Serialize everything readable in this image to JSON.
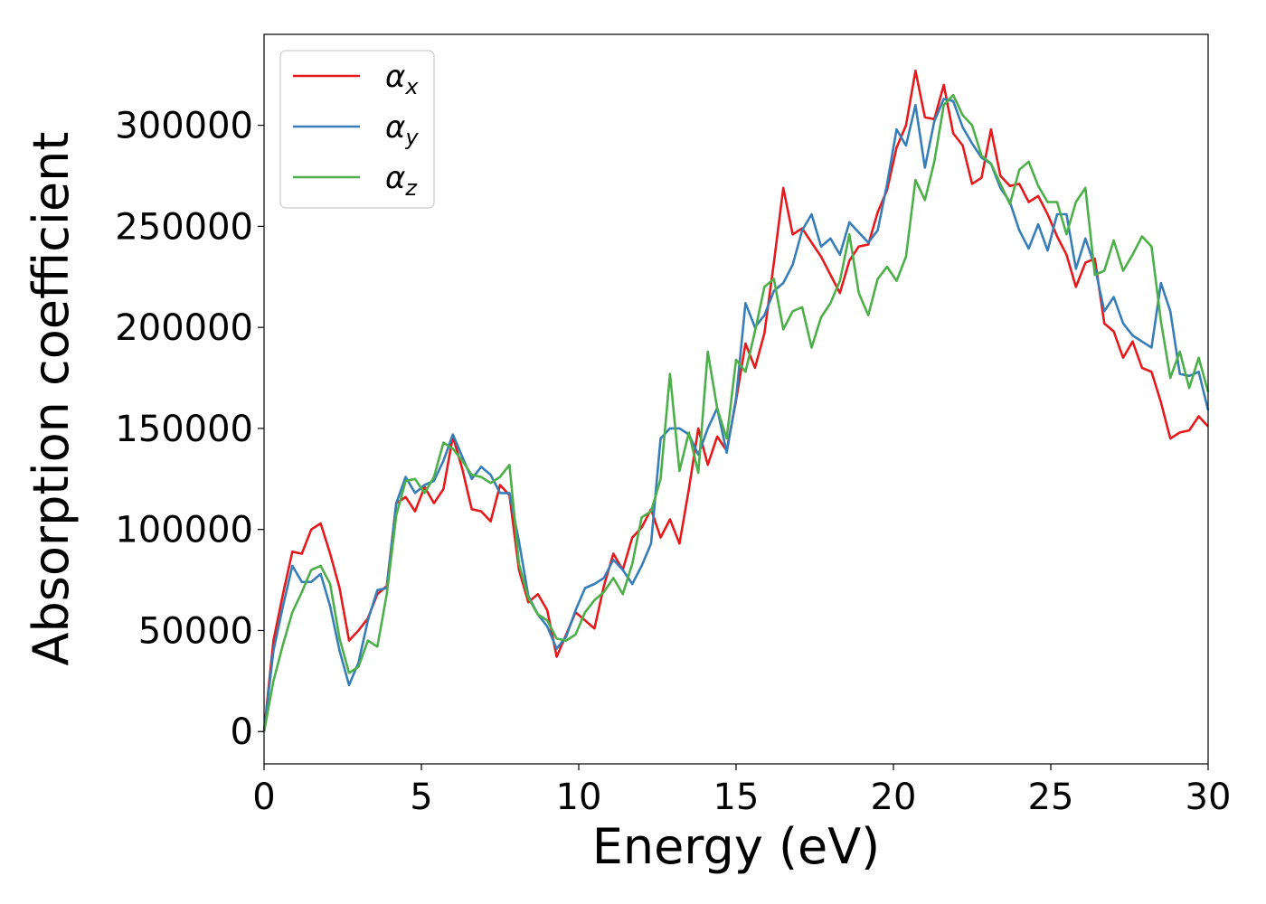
{
  "chart_data": {
    "type": "line",
    "title": "",
    "xlabel": "Energy (eV)",
    "ylabel": "Absorption coefficient",
    "xlim": [
      0,
      30
    ],
    "ylim": [
      -16000,
      345000
    ],
    "xticks": [
      0,
      5,
      10,
      15,
      20,
      25,
      30
    ],
    "yticks": [
      0,
      50000,
      100000,
      150000,
      200000,
      250000,
      300000
    ],
    "grid": false,
    "legend_position": "top-left",
    "series": [
      {
        "name": "αx",
        "symbol": "α",
        "subscript": "x",
        "color": "#e41a1c",
        "x": [
          0,
          0.3,
          0.6,
          0.9,
          1.2,
          1.5,
          1.8,
          2.1,
          2.4,
          2.7,
          3.0,
          3.3,
          3.6,
          3.9,
          4.2,
          4.5,
          4.8,
          5.1,
          5.4,
          5.7,
          6.0,
          6.3,
          6.6,
          6.9,
          7.2,
          7.5,
          7.8,
          8.1,
          8.4,
          8.7,
          9.0,
          9.3,
          9.6,
          9.9,
          10.2,
          10.5,
          10.8,
          11.1,
          11.4,
          11.7,
          12.0,
          12.3,
          12.6,
          12.9,
          13.2,
          13.5,
          13.8,
          14.1,
          14.4,
          14.7,
          15.0,
          15.3,
          15.6,
          15.9,
          16.2,
          16.5,
          16.8,
          17.1,
          17.4,
          17.7,
          18.0,
          18.3,
          18.6,
          18.9,
          19.2,
          19.5,
          19.8,
          20.1,
          20.4,
          20.7,
          21.0,
          21.3,
          21.6,
          21.9,
          22.2,
          22.5,
          22.8,
          23.1,
          23.4,
          23.7,
          24.0,
          24.3,
          24.6,
          24.9,
          25.2,
          25.5,
          25.8,
          26.1,
          26.4,
          26.7,
          27.0,
          27.3,
          27.6,
          27.9,
          28.2,
          28.5,
          28.8,
          29.1,
          29.4,
          29.7,
          30.0
        ],
        "values": [
          0,
          45000,
          68000,
          89000,
          88000,
          100000,
          103000,
          88000,
          71000,
          45000,
          50000,
          56000,
          68000,
          72000,
          113000,
          116000,
          109000,
          121000,
          113000,
          120000,
          146000,
          130000,
          110000,
          109000,
          104000,
          122000,
          117000,
          80000,
          64000,
          68000,
          60000,
          37000,
          48000,
          59000,
          55000,
          51000,
          72000,
          88000,
          80000,
          96000,
          101000,
          110000,
          96000,
          105000,
          93000,
          120000,
          150000,
          132000,
          146000,
          139000,
          164000,
          192000,
          180000,
          197000,
          232000,
          269000,
          246000,
          249000,
          242000,
          235000,
          226000,
          217000,
          233000,
          240000,
          241000,
          257000,
          268000,
          289000,
          300000,
          327000,
          304000,
          303000,
          320000,
          296000,
          290000,
          271000,
          274000,
          298000,
          275000,
          270000,
          271000,
          262000,
          265000,
          256000,
          245000,
          236000,
          220000,
          232000,
          234000,
          202000,
          198000,
          185000,
          193000,
          180000,
          178000,
          163000,
          145000,
          148000,
          149000,
          156000,
          151000
        ]
      },
      {
        "name": "αy",
        "symbol": "α",
        "subscript": "y",
        "color": "#377eb8",
        "x": [
          0,
          0.3,
          0.6,
          0.9,
          1.2,
          1.5,
          1.8,
          2.1,
          2.4,
          2.7,
          3.0,
          3.3,
          3.6,
          3.9,
          4.2,
          4.5,
          4.8,
          5.1,
          5.4,
          5.7,
          6.0,
          6.3,
          6.6,
          6.9,
          7.2,
          7.5,
          7.8,
          8.1,
          8.4,
          8.7,
          9.0,
          9.3,
          9.6,
          9.9,
          10.2,
          10.5,
          10.8,
          11.1,
          11.4,
          11.7,
          12.0,
          12.3,
          12.6,
          12.9,
          13.2,
          13.5,
          13.8,
          14.1,
          14.4,
          14.7,
          15.0,
          15.3,
          15.6,
          15.9,
          16.2,
          16.5,
          16.8,
          17.1,
          17.4,
          17.7,
          18.0,
          18.3,
          18.6,
          18.9,
          19.2,
          19.5,
          19.8,
          20.1,
          20.4,
          20.7,
          21.0,
          21.3,
          21.6,
          21.9,
          22.2,
          22.5,
          22.8,
          23.1,
          23.4,
          23.7,
          24.0,
          24.3,
          24.6,
          24.9,
          25.2,
          25.5,
          25.8,
          26.1,
          26.4,
          26.7,
          27.0,
          27.3,
          27.6,
          27.9,
          28.2,
          28.5,
          28.8,
          29.1,
          29.4,
          29.7,
          30.0
        ],
        "values": [
          0,
          40000,
          62000,
          82000,
          74000,
          74000,
          78000,
          62000,
          40000,
          23000,
          34000,
          55000,
          70000,
          71000,
          113000,
          126000,
          118000,
          122000,
          124000,
          134000,
          147000,
          136000,
          125000,
          131000,
          127000,
          118000,
          118000,
          94000,
          67000,
          58000,
          52000,
          41000,
          47000,
          60000,
          71000,
          73000,
          76000,
          85000,
          80000,
          73000,
          82000,
          93000,
          145000,
          150000,
          150000,
          147000,
          137000,
          150000,
          160000,
          138000,
          165000,
          212000,
          200000,
          206000,
          218000,
          222000,
          231000,
          248000,
          256000,
          240000,
          244000,
          236000,
          252000,
          247000,
          242000,
          248000,
          271000,
          298000,
          290000,
          310000,
          279000,
          302000,
          313000,
          312000,
          299000,
          291000,
          284000,
          281000,
          269000,
          262000,
          248000,
          239000,
          251000,
          238000,
          256000,
          256000,
          229000,
          244000,
          230000,
          208000,
          215000,
          202000,
          196000,
          193000,
          190000,
          222000,
          208000,
          177000,
          176000,
          178000,
          159000
        ]
      },
      {
        "name": "αz",
        "symbol": "α",
        "subscript": "z",
        "color": "#4daf4a",
        "x": [
          0,
          0.3,
          0.6,
          0.9,
          1.2,
          1.5,
          1.8,
          2.1,
          2.4,
          2.7,
          3.0,
          3.3,
          3.6,
          3.9,
          4.2,
          4.5,
          4.8,
          5.1,
          5.4,
          5.7,
          6.0,
          6.3,
          6.6,
          6.9,
          7.2,
          7.5,
          7.8,
          8.1,
          8.4,
          8.7,
          9.0,
          9.3,
          9.6,
          9.9,
          10.2,
          10.5,
          10.8,
          11.1,
          11.4,
          11.7,
          12.0,
          12.3,
          12.6,
          12.9,
          13.2,
          13.5,
          13.8,
          14.1,
          14.4,
          14.7,
          15.0,
          15.3,
          15.6,
          15.9,
          16.2,
          16.5,
          16.8,
          17.1,
          17.4,
          17.7,
          18.0,
          18.3,
          18.6,
          18.9,
          19.2,
          19.5,
          19.8,
          20.1,
          20.4,
          20.7,
          21.0,
          21.3,
          21.6,
          21.9,
          22.2,
          22.5,
          22.8,
          23.1,
          23.4,
          23.7,
          24.0,
          24.3,
          24.6,
          24.9,
          25.2,
          25.5,
          25.8,
          26.1,
          26.4,
          26.7,
          27.0,
          27.3,
          27.6,
          27.9,
          28.2,
          28.5,
          28.8,
          29.1,
          29.4,
          29.7,
          30.0
        ],
        "values": [
          0,
          25000,
          43000,
          59000,
          69000,
          80000,
          82000,
          73000,
          46000,
          29000,
          32000,
          45000,
          42000,
          68000,
          107000,
          124000,
          125000,
          118000,
          126000,
          143000,
          140000,
          134000,
          127000,
          126000,
          123000,
          126000,
          132000,
          83000,
          66000,
          58000,
          55000,
          46000,
          45000,
          48000,
          59000,
          65000,
          69000,
          76000,
          68000,
          83000,
          106000,
          109000,
          125000,
          177000,
          129000,
          148000,
          128000,
          188000,
          160000,
          145000,
          184000,
          178000,
          198000,
          220000,
          224000,
          199000,
          208000,
          210000,
          190000,
          205000,
          212000,
          223000,
          246000,
          217000,
          206000,
          224000,
          230000,
          223000,
          235000,
          273000,
          263000,
          282000,
          310000,
          315000,
          305000,
          300000,
          285000,
          281000,
          271000,
          261000,
          278000,
          282000,
          270000,
          262000,
          262000,
          246000,
          262000,
          269000,
          226000,
          228000,
          243000,
          228000,
          236000,
          245000,
          240000,
          203000,
          175000,
          188000,
          170000,
          185000,
          168000
        ]
      }
    ]
  }
}
